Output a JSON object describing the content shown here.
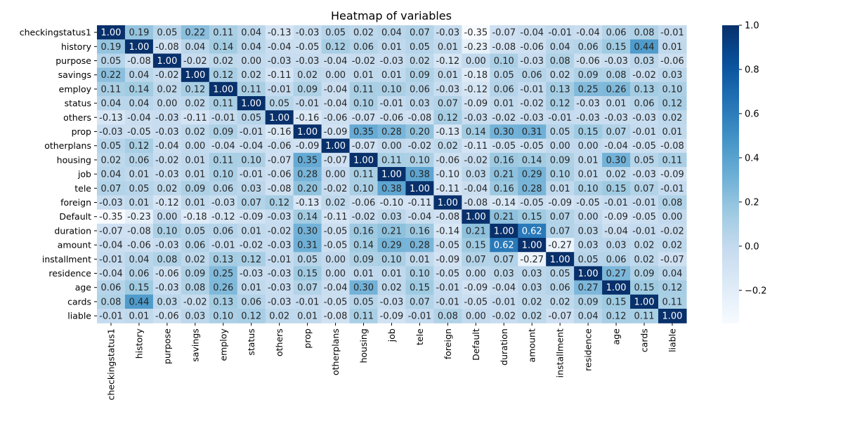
{
  "chart_data": {
    "type": "heatmap",
    "title": "Heatmap of variables",
    "labels": [
      "checkingstatus1",
      "history",
      "purpose",
      "savings",
      "employ",
      "status",
      "others",
      "prop",
      "otherplans",
      "housing",
      "job",
      "tele",
      "foreign",
      "Default",
      "duration",
      "amount",
      "installment",
      "residence",
      "age",
      "cards",
      "liable"
    ],
    "matrix": [
      [
        1.0,
        0.19,
        0.05,
        0.22,
        0.11,
        0.04,
        -0.13,
        -0.03,
        0.05,
        0.02,
        0.04,
        0.07,
        -0.03,
        -0.35,
        -0.07,
        -0.04,
        -0.01,
        -0.04,
        0.06,
        0.08,
        -0.01
      ],
      [
        0.19,
        1.0,
        -0.08,
        0.04,
        0.14,
        0.04,
        -0.04,
        -0.05,
        0.12,
        0.06,
        0.01,
        0.05,
        0.01,
        -0.23,
        -0.08,
        -0.06,
        0.04,
        0.06,
        0.15,
        0.44,
        0.01
      ],
      [
        0.05,
        -0.08,
        1.0,
        -0.02,
        0.02,
        -0.0,
        -0.03,
        -0.03,
        -0.04,
        -0.02,
        -0.03,
        0.02,
        -0.12,
        0.0,
        0.1,
        -0.03,
        0.08,
        -0.06,
        -0.03,
        0.03,
        -0.06
      ],
      [
        0.22,
        0.04,
        -0.02,
        1.0,
        0.12,
        0.02,
        -0.11,
        0.02,
        0.0,
        0.01,
        0.01,
        0.09,
        0.01,
        -0.18,
        0.05,
        0.06,
        0.02,
        0.09,
        0.08,
        -0.02,
        0.03
      ],
      [
        0.11,
        0.14,
        0.02,
        0.12,
        1.0,
        0.11,
        -0.01,
        0.09,
        -0.04,
        0.11,
        0.1,
        0.06,
        -0.03,
        -0.12,
        0.06,
        -0.01,
        0.13,
        0.25,
        0.26,
        0.13,
        0.1
      ],
      [
        0.04,
        0.04,
        -0.0,
        0.02,
        0.11,
        1.0,
        0.05,
        -0.01,
        -0.04,
        0.1,
        -0.01,
        0.03,
        0.07,
        -0.09,
        0.01,
        -0.02,
        0.12,
        -0.03,
        0.01,
        0.06,
        0.12
      ],
      [
        -0.13,
        -0.04,
        -0.03,
        -0.11,
        -0.01,
        0.05,
        1.0,
        -0.16,
        -0.06,
        -0.07,
        -0.06,
        -0.08,
        0.12,
        -0.03,
        -0.02,
        -0.03,
        -0.01,
        -0.03,
        -0.03,
        -0.03,
        0.02
      ],
      [
        -0.03,
        -0.05,
        -0.03,
        0.02,
        0.09,
        -0.01,
        -0.16,
        1.0,
        -0.09,
        0.35,
        0.28,
        0.2,
        -0.13,
        0.14,
        0.3,
        0.31,
        0.05,
        0.15,
        0.07,
        -0.01,
        0.01
      ],
      [
        0.05,
        0.12,
        -0.04,
        0.0,
        -0.04,
        -0.04,
        -0.06,
        -0.09,
        1.0,
        -0.07,
        -0.0,
        -0.02,
        0.02,
        -0.11,
        -0.05,
        -0.05,
        -0.0,
        0.0,
        -0.04,
        -0.05,
        -0.08
      ],
      [
        0.02,
        0.06,
        -0.02,
        0.01,
        0.11,
        0.1,
        -0.07,
        0.35,
        -0.07,
        1.0,
        0.11,
        0.1,
        -0.06,
        -0.02,
        0.16,
        0.14,
        0.09,
        0.01,
        0.3,
        0.05,
        0.11
      ],
      [
        0.04,
        0.01,
        -0.03,
        0.01,
        0.1,
        -0.01,
        -0.06,
        0.28,
        -0.0,
        0.11,
        1.0,
        0.38,
        -0.1,
        0.03,
        0.21,
        0.29,
        0.1,
        0.01,
        0.02,
        -0.03,
        -0.09
      ],
      [
        0.07,
        0.05,
        0.02,
        0.09,
        0.06,
        0.03,
        -0.08,
        0.2,
        -0.02,
        0.1,
        0.38,
        1.0,
        -0.11,
        -0.04,
        0.16,
        0.28,
        0.01,
        0.1,
        0.15,
        0.07,
        -0.01
      ],
      [
        -0.03,
        0.01,
        -0.12,
        0.01,
        -0.03,
        0.07,
        0.12,
        -0.13,
        0.02,
        -0.06,
        -0.1,
        -0.11,
        1.0,
        -0.08,
        -0.14,
        -0.05,
        -0.09,
        -0.05,
        -0.01,
        -0.01,
        0.08
      ],
      [
        -0.35,
        -0.23,
        0.0,
        -0.18,
        -0.12,
        -0.09,
        -0.03,
        0.14,
        -0.11,
        -0.02,
        0.03,
        -0.04,
        -0.08,
        1.0,
        0.21,
        0.15,
        0.07,
        0.0,
        -0.09,
        -0.05,
        -0.0
      ],
      [
        -0.07,
        -0.08,
        0.1,
        0.05,
        0.06,
        0.01,
        -0.02,
        0.3,
        -0.05,
        0.16,
        0.21,
        0.16,
        -0.14,
        0.21,
        1.0,
        0.62,
        0.07,
        0.03,
        -0.04,
        -0.01,
        -0.02
      ],
      [
        -0.04,
        -0.06,
        -0.03,
        0.06,
        -0.01,
        -0.02,
        -0.03,
        0.31,
        -0.05,
        0.14,
        0.29,
        0.28,
        -0.05,
        0.15,
        0.62,
        1.0,
        -0.27,
        0.03,
        0.03,
        0.02,
        0.02
      ],
      [
        -0.01,
        0.04,
        0.08,
        0.02,
        0.13,
        0.12,
        -0.01,
        0.05,
        -0.0,
        0.09,
        0.1,
        0.01,
        -0.09,
        0.07,
        0.07,
        -0.27,
        1.0,
        0.05,
        0.06,
        0.02,
        -0.07
      ],
      [
        -0.04,
        0.06,
        -0.06,
        0.09,
        0.25,
        -0.03,
        -0.03,
        0.15,
        0.0,
        0.01,
        0.01,
        0.1,
        -0.05,
        0.0,
        0.03,
        0.03,
        0.05,
        1.0,
        0.27,
        0.09,
        0.04
      ],
      [
        0.06,
        0.15,
        -0.03,
        0.08,
        0.26,
        0.01,
        -0.03,
        0.07,
        -0.04,
        0.3,
        0.02,
        0.15,
        -0.01,
        -0.09,
        -0.04,
        0.03,
        0.06,
        0.27,
        1.0,
        0.15,
        0.12
      ],
      [
        0.08,
        0.44,
        0.03,
        -0.02,
        0.13,
        0.06,
        -0.03,
        -0.01,
        -0.05,
        0.05,
        -0.03,
        0.07,
        -0.01,
        -0.05,
        -0.01,
        0.02,
        0.02,
        0.09,
        0.15,
        1.0,
        0.11
      ],
      [
        -0.01,
        0.01,
        -0.06,
        0.03,
        0.1,
        0.12,
        0.02,
        0.01,
        -0.08,
        0.11,
        -0.09,
        -0.01,
        0.08,
        -0.0,
        -0.02,
        0.02,
        -0.07,
        0.04,
        0.12,
        0.11,
        1.0
      ]
    ],
    "value_range": [
      -0.35,
      1.0
    ],
    "colormap": "Blues",
    "colorbar": {
      "ticks": [
        -0.2,
        0.0,
        0.2,
        0.4,
        0.6,
        0.8,
        1.0
      ],
      "tick_labels": [
        "−0.2",
        "0.0",
        "0.2",
        "0.4",
        "0.6",
        "0.8",
        "1.0"
      ]
    },
    "annotations": true,
    "grid": false
  }
}
